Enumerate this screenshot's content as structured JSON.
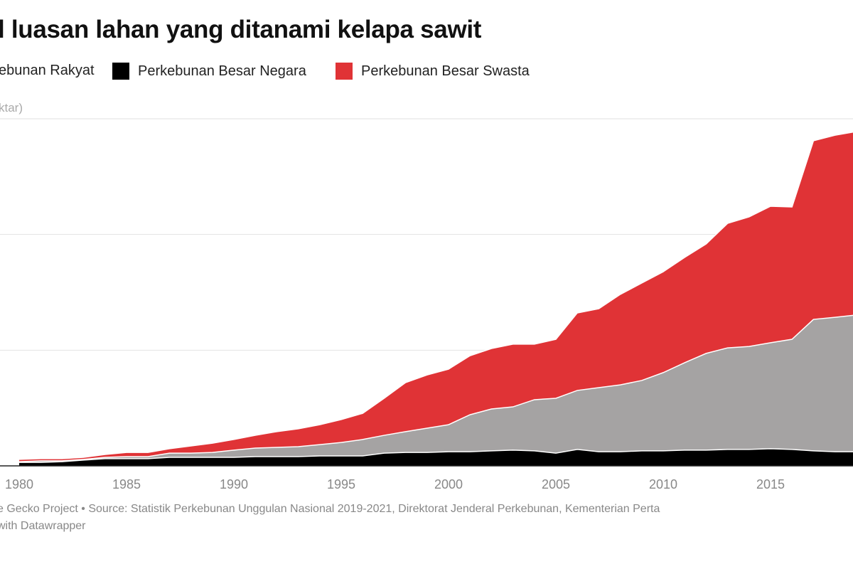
{
  "chart_data": {
    "type": "area",
    "stacked": true,
    "title": "l luasan lahan yang ditanami kelapa sawit",
    "ylabel": "ktar)",
    "xlabel": "",
    "x_ticks": [
      "1980",
      "1985",
      "1990",
      "1995",
      "2000",
      "2005",
      "2010",
      "2015"
    ],
    "ylim": [
      0,
      15
    ],
    "grid": true,
    "legend_position": "top",
    "x": [
      1980,
      1981,
      1982,
      1983,
      1984,
      1985,
      1986,
      1987,
      1988,
      1989,
      1990,
      1991,
      1992,
      1993,
      1994,
      1995,
      1996,
      1997,
      1998,
      1999,
      2000,
      2001,
      2002,
      2003,
      2004,
      2005,
      2006,
      2007,
      2008,
      2009,
      2010,
      2011,
      2012,
      2013,
      2014,
      2015,
      2016,
      2017,
      2018,
      2019
    ],
    "series": [
      {
        "name": "Perkebunan Besar Negara",
        "color": "#000000",
        "values": [
          0.15,
          0.15,
          0.18,
          0.25,
          0.31,
          0.31,
          0.31,
          0.37,
          0.37,
          0.37,
          0.37,
          0.4,
          0.4,
          0.4,
          0.43,
          0.43,
          0.43,
          0.55,
          0.58,
          0.58,
          0.61,
          0.61,
          0.65,
          0.68,
          0.65,
          0.55,
          0.71,
          0.61,
          0.61,
          0.65,
          0.65,
          0.68,
          0.68,
          0.71,
          0.71,
          0.74,
          0.71,
          0.65,
          0.61,
          0.61
        ]
      },
      {
        "name": "ebunan Rakyat",
        "color": "#a5a3a3",
        "values": [
          0.03,
          0.07,
          0.04,
          0.03,
          0.06,
          0.09,
          0.09,
          0.18,
          0.18,
          0.21,
          0.31,
          0.37,
          0.4,
          0.43,
          0.49,
          0.58,
          0.71,
          0.77,
          0.9,
          1.05,
          1.17,
          1.6,
          1.81,
          1.87,
          2.21,
          2.37,
          2.55,
          2.77,
          2.89,
          3.04,
          3.38,
          3.78,
          4.18,
          4.39,
          4.45,
          4.58,
          4.76,
          5.68,
          5.81,
          5.91
        ]
      },
      {
        "name": "Perkebunan Besar Swasta",
        "color": "#e03336",
        "values": [
          0.1,
          0.09,
          0.09,
          0.09,
          0.12,
          0.18,
          0.18,
          0.19,
          0.31,
          0.4,
          0.46,
          0.55,
          0.68,
          0.77,
          0.86,
          0.99,
          1.13,
          1.6,
          2.12,
          2.3,
          2.4,
          2.55,
          2.61,
          2.71,
          2.4,
          2.55,
          3.35,
          3.41,
          3.91,
          4.21,
          4.36,
          4.55,
          4.73,
          5.38,
          5.6,
          5.9,
          5.72,
          7.72,
          7.87,
          7.93
        ]
      }
    ]
  },
  "footer": {
    "line1": "e Gecko Project • Source: Statistik Perkebunan Unggulan Nasional 2019-2021, Direktorat Jenderal Perkebunan, Kementerian Perta",
    "line2": "with Datawrapper"
  }
}
